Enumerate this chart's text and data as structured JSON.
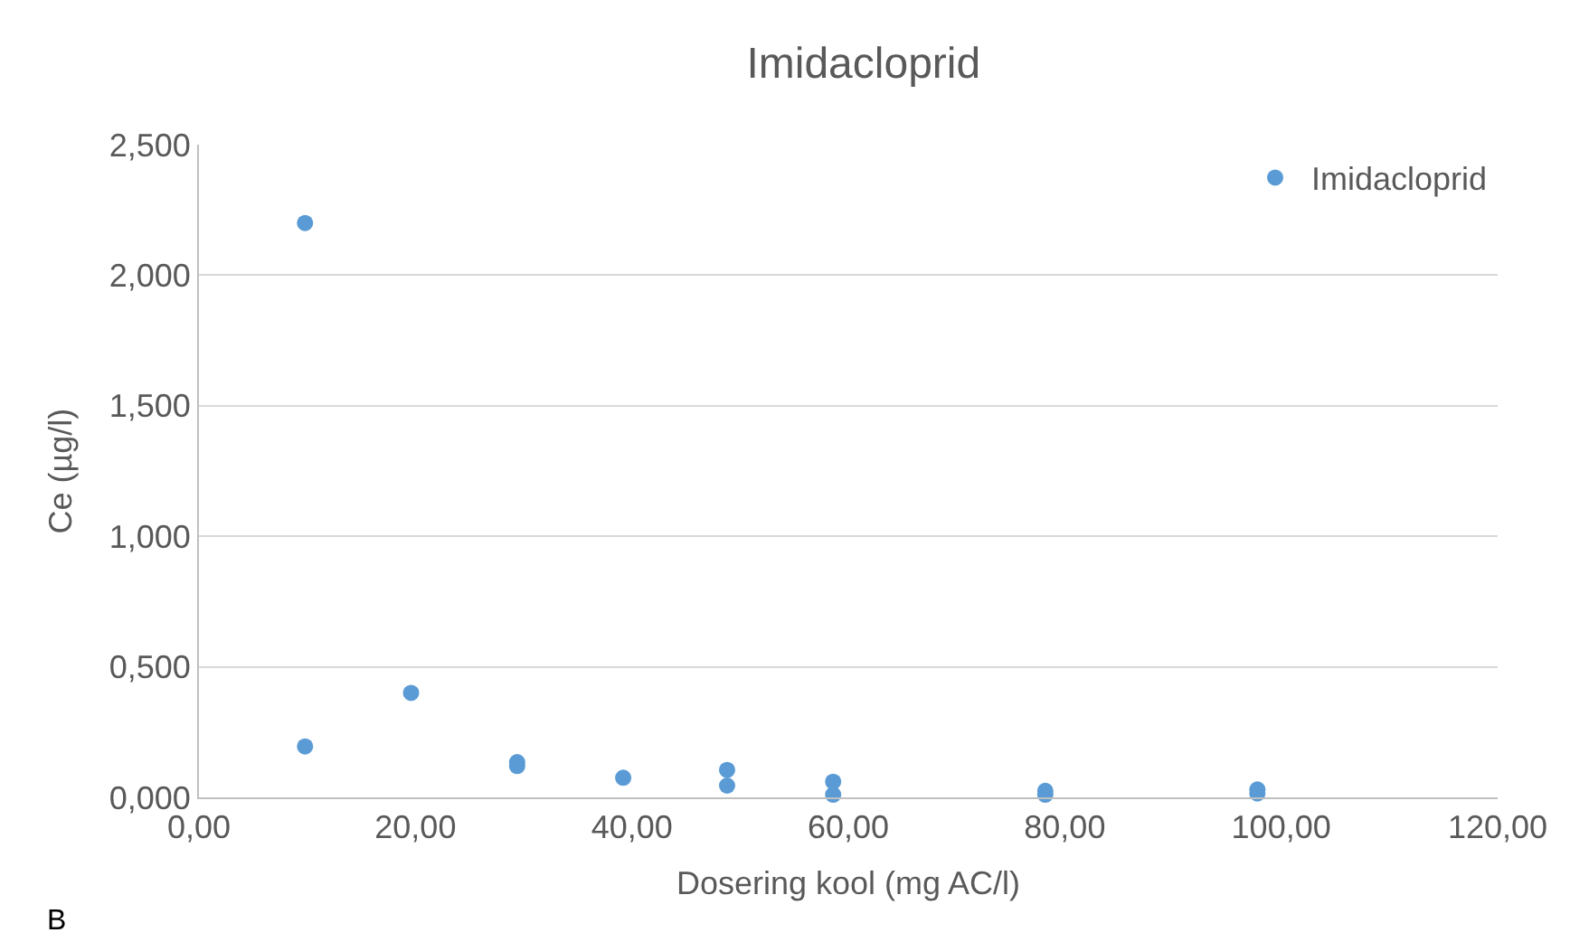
{
  "chart_data": {
    "type": "scatter",
    "title": "Imidacloprid",
    "xlabel": "Dosering kool (mg AC/l)",
    "ylabel": "Ce (µg/l)",
    "annotations": [
      "B"
    ],
    "series": [
      {
        "name": "Imidacloprid",
        "color": "#5b9bd5",
        "x": [
          9.8,
          9.8,
          19.6,
          29.4,
          29.4,
          39.2,
          48.8,
          48.8,
          58.6,
          58.6,
          78.2,
          78.2,
          97.8,
          97.8
        ],
        "values": [
          2.2,
          0.195,
          0.4,
          0.135,
          0.12,
          0.075,
          0.105,
          0.045,
          0.06,
          0.01,
          0.025,
          0.01,
          0.03,
          0.015
        ]
      }
    ],
    "xlim": [
      0,
      120
    ],
    "ylim": [
      0,
      2.5
    ],
    "xticks": [
      {
        "value": 0,
        "label": "0,00"
      },
      {
        "value": 20,
        "label": "20,00"
      },
      {
        "value": 40,
        "label": "40,00"
      },
      {
        "value": 60,
        "label": "60,00"
      },
      {
        "value": 80,
        "label": "80,00"
      },
      {
        "value": 100,
        "label": "100,00"
      },
      {
        "value": 120,
        "label": "120,00"
      }
    ],
    "yticks": [
      {
        "value": 0,
        "label": "0,000"
      },
      {
        "value": 0.5,
        "label": "0,500"
      },
      {
        "value": 1,
        "label": "1,000"
      },
      {
        "value": 1.5,
        "label": "1,500"
      },
      {
        "value": 2,
        "label": "2,000"
      },
      {
        "value": 2.5,
        "label": "2,500"
      }
    ],
    "grid": "y",
    "legend": "top right",
    "marker": "circle"
  }
}
